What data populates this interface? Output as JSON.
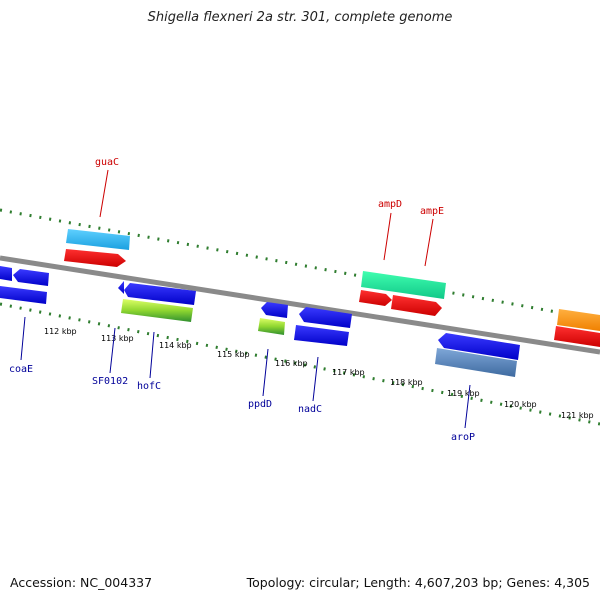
{
  "title": "Shigella flexneri 2a str. 301, complete genome",
  "footer": {
    "accession": "Accession: NC_004337",
    "summary": "Topology: circular; Length: 4,607,203 bp; Genes: 4,305"
  },
  "colors": {
    "forward_label": "#cc0000",
    "reverse_label": "#000099",
    "backbone": "#888888",
    "ticks": "#2f7d2f"
  },
  "scale": {
    "start_kbp": 111,
    "end_kbp": 121,
    "ticks": [
      "112 kbp",
      "113 kbp",
      "114 kbp",
      "115 kbp",
      "116 kbp",
      "117 kbp",
      "118 kbp",
      "119 kbp",
      "120 kbp",
      "121 kbp"
    ]
  },
  "labels_forward": [
    "guaC",
    "ampD",
    "ampE"
  ],
  "labels_reverse": [
    "coaE",
    "SF0102",
    "hofC",
    "ppdD",
    "nadC",
    "aroP"
  ]
}
